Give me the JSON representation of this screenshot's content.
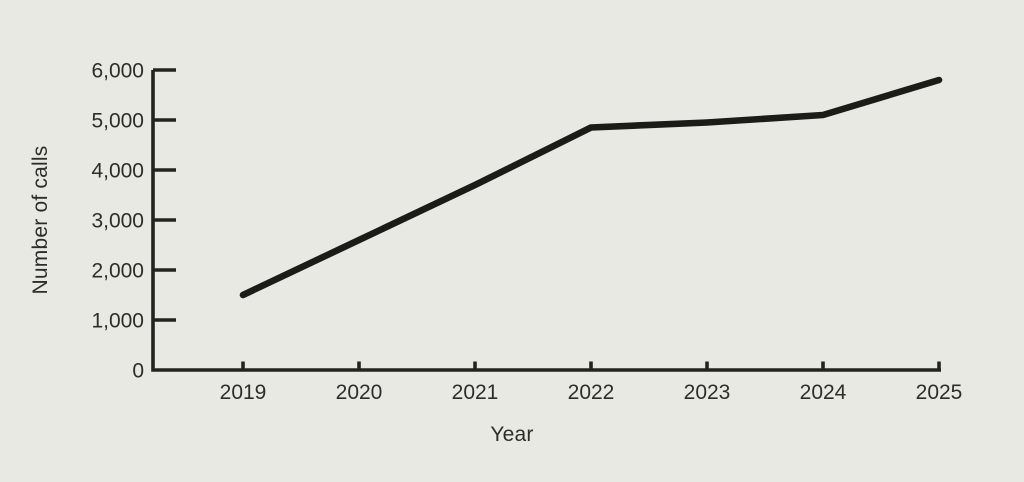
{
  "page": {
    "background_color": "#e9e9e4",
    "text_color": "#2d2d2a",
    "axis_color": "#23231f",
    "line_color": "#1b1b18"
  },
  "chart_data": {
    "type": "line",
    "xlabel": "Year",
    "ylabel": "Number of calls",
    "x": [
      2019,
      2020,
      2021,
      2022,
      2023,
      2024,
      2025
    ],
    "values": [
      1500,
      2600,
      3700,
      4850,
      4950,
      5100,
      5800
    ],
    "series_name": "Number of calls",
    "ylim": [
      0,
      6000
    ],
    "ytick_step": 1000,
    "ytick_labels": [
      "0",
      "1,000",
      "2,000",
      "3,000",
      "4,000",
      "5,000",
      "6,000"
    ],
    "xtick_labels": [
      "2019",
      "2020",
      "2021",
      "2022",
      "2023",
      "2024",
      "2025"
    ],
    "grid": false,
    "legend": false,
    "tick_direction": "in"
  }
}
